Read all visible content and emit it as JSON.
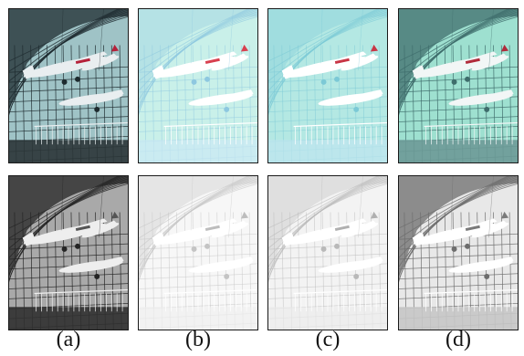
{
  "captions": [
    "(a)",
    "(b)",
    "(c)",
    "(d)"
  ],
  "rows": [
    {
      "variant": "color",
      "panels": [
        {
          "sky": "#9fc3c6",
          "frame": "#1e2b2f",
          "floor": "#2b3537",
          "plane": "#e9eef0",
          "accent": "#b5213a",
          "dark": true
        },
        {
          "sky": "#c9f0e9",
          "frame": "#8ec8e0",
          "floor": "#cbe8f3",
          "plane": "#ffffff",
          "accent": "#d8404f",
          "dark": false
        },
        {
          "sky": "#b4e8e3",
          "frame": "#7cc9d6",
          "floor": "#bfe6ef",
          "plane": "#ffffff",
          "accent": "#c83545",
          "dark": false
        },
        {
          "sky": "#9ee0d0",
          "frame": "#3f6d6c",
          "floor": "#6d9a97",
          "plane": "#f2f6f6",
          "accent": "#b02a3a",
          "dark": true
        }
      ]
    },
    {
      "variant": "grayscale",
      "panels": [
        {
          "sky": "#a9a9a9",
          "frame": "#242424",
          "floor": "#303030",
          "plane": "#eeeeee",
          "accent": "#555555",
          "dark": true
        },
        {
          "sky": "#f7f7f7",
          "frame": "#c4c4c4",
          "floor": "#efefef",
          "plane": "#ffffff",
          "accent": "#bdbdbd",
          "dark": false
        },
        {
          "sky": "#f3f3f3",
          "frame": "#b9b9b9",
          "floor": "#ebebeb",
          "plane": "#ffffff",
          "accent": "#b0b0b0",
          "dark": false
        },
        {
          "sky": "#e8e8e8",
          "frame": "#6d6d6d",
          "floor": "#c6c6c6",
          "plane": "#ffffff",
          "accent": "#7a7a7a",
          "dark": true
        }
      ]
    }
  ]
}
